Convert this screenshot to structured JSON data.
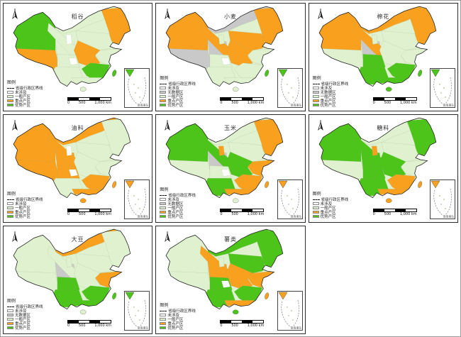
{
  "colors": {
    "light": "#DFF1CE",
    "orange": "#F9A11E",
    "green": "#4CC41A",
    "gray": "#C9C9C9",
    "white": "#FFFFFF",
    "outline": "#1C1C1C"
  },
  "legend_labels": {
    "title": "图例",
    "line": "省级行政区界线",
    "none": "未涉及",
    "gray": "无数据区",
    "light": "一般产区",
    "orange": "重点产区",
    "green": "优势产区"
  },
  "scalebar": {
    "labels": [
      "0",
      "500",
      "1,000 km"
    ]
  },
  "inset": {
    "label": "南海诸岛"
  },
  "panels": [
    {
      "id": "p1",
      "title": "稻谷",
      "has_gray": false,
      "regions": {
        "xinjiang": "green",
        "tibet": "orange",
        "qinghai": "light",
        "gansu": "light",
        "innermongolia": "light",
        "northeast": "orange",
        "northchina": "light",
        "central": "orange",
        "east": "light",
        "sichuan": "light",
        "southwest": "light",
        "southeast": "green",
        "south": "light",
        "chongqing": "white",
        "ningxia": "white",
        "taiwan": "green",
        "hainan": "light"
      }
    },
    {
      "id": "p2",
      "title": "小麦",
      "has_gray": true,
      "regions": {
        "xinjiang": "orange",
        "tibet": "gray",
        "qinghai": "gray",
        "gansu": "orange",
        "innermongolia": "gray",
        "northeast": "orange",
        "northchina": "orange",
        "central": "orange",
        "east": "light",
        "sichuan": "light",
        "southwest": "light",
        "southeast": "light",
        "south": "light",
        "chongqing": "white",
        "ningxia": "light",
        "taiwan": "green",
        "hainan": "light"
      }
    },
    {
      "id": "p3",
      "title": "棉花",
      "has_gray": true,
      "regions": {
        "xinjiang": "orange",
        "tibet": "light",
        "qinghai": "gray",
        "gansu": "orange",
        "innermongolia": "orange",
        "northeast": "orange",
        "northchina": "light",
        "central": "light",
        "east": "light",
        "sichuan": "green",
        "southwest": "green",
        "southeast": "green",
        "south": "green",
        "chongqing": "green",
        "ningxia": "light",
        "taiwan": "green",
        "hainan": "green"
      }
    },
    {
      "id": "p4",
      "title": "油料",
      "has_gray": false,
      "regions": {
        "xinjiang": "orange",
        "tibet": "orange",
        "qinghai": "orange",
        "gansu": "orange",
        "innermongolia": "orange",
        "northeast": "light",
        "northchina": "light",
        "central": "light",
        "east": "light",
        "sichuan": "orange",
        "southwest": "light",
        "southeast": "orange",
        "south": "orange",
        "chongqing": "white",
        "ningxia": "white",
        "taiwan": "orange",
        "hainan": "orange"
      }
    },
    {
      "id": "p5",
      "title": "玉米",
      "has_gray": true,
      "regions": {
        "xinjiang": "green",
        "tibet": "light",
        "qinghai": "gray",
        "gansu": "green",
        "innermongolia": "light",
        "northeast": "orange",
        "northchina": "light",
        "central": "green",
        "east": "orange",
        "sichuan": "light",
        "southwest": "green",
        "southeast": "orange",
        "south": "orange",
        "chongqing": "white",
        "ningxia": "orange",
        "taiwan": "orange",
        "hainan": "light"
      }
    },
    {
      "id": "p6",
      "title": "糖料",
      "has_gray": false,
      "regions": {
        "xinjiang": "green",
        "tibet": "light",
        "qinghai": "green",
        "gansu": "green",
        "innermongolia": "light",
        "northeast": "green",
        "northchina": "light",
        "central": "green",
        "east": "light",
        "sichuan": "green",
        "southwest": "green",
        "southeast": "orange",
        "south": "orange",
        "chongqing": "green",
        "ningxia": "orange",
        "taiwan": "orange",
        "hainan": "orange"
      }
    },
    {
      "id": "p7",
      "title": "大豆",
      "has_gray": true,
      "regions": {
        "xinjiang": "light",
        "tibet": "light",
        "qinghai": "gray",
        "gansu": "light",
        "innermongolia": "orange",
        "northeast": "light",
        "northchina": "light",
        "central": "light",
        "east": "orange",
        "sichuan": "green",
        "southwest": "green",
        "southeast": "green",
        "south": "green",
        "chongqing": "green",
        "ningxia": "light",
        "taiwan": "green",
        "hainan": "light"
      }
    },
    {
      "id": "p8",
      "title": "薯类",
      "has_gray": false,
      "regions": {
        "xinjiang": "light",
        "tibet": "light",
        "qinghai": "orange",
        "gansu": "orange",
        "innermongolia": "green",
        "northeast": "green",
        "northchina": "green",
        "central": "orange",
        "east": "orange",
        "sichuan": "green",
        "southwest": "green",
        "southeast": "green",
        "south": "orange",
        "chongqing": "white",
        "ningxia": "light",
        "taiwan": "orange",
        "hainan": "green"
      }
    }
  ]
}
